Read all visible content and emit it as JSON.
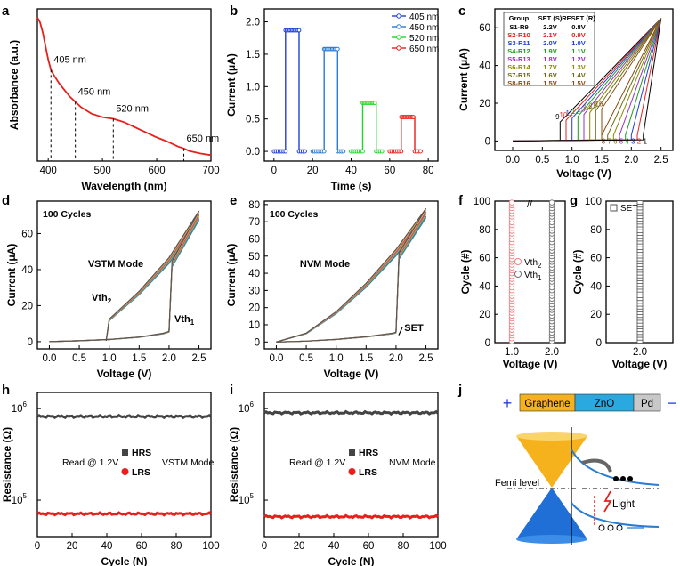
{
  "panels": {
    "a": {
      "letter": "a"
    },
    "b": {
      "letter": "b"
    },
    "c": {
      "letter": "c"
    },
    "d": {
      "letter": "d"
    },
    "e": {
      "letter": "e"
    },
    "f": {
      "letter": "f"
    },
    "g": {
      "letter": "g"
    },
    "h": {
      "letter": "h"
    },
    "i": {
      "letter": "i"
    },
    "j": {
      "letter": "j"
    }
  },
  "chart_data": [
    {
      "id": "a",
      "type": "line",
      "title": "",
      "xlabel": "Wavelength (nm)",
      "ylabel": "Absorbance (a.u.)",
      "xlim": [
        380,
        700
      ],
      "xticks": [
        400,
        500,
        600,
        700
      ],
      "yticks": [],
      "color": "#e8201c",
      "x": [
        380,
        385,
        390,
        395,
        400,
        405,
        410,
        420,
        430,
        440,
        450,
        460,
        470,
        480,
        490,
        500,
        510,
        520,
        530,
        540,
        550,
        560,
        570,
        580,
        590,
        600,
        620,
        640,
        650,
        660,
        680,
        700
      ],
      "y": [
        0.95,
        0.92,
        0.86,
        0.78,
        0.7,
        0.64,
        0.61,
        0.56,
        0.52,
        0.48,
        0.45,
        0.42,
        0.4,
        0.38,
        0.37,
        0.36,
        0.355,
        0.35,
        0.34,
        0.33,
        0.315,
        0.3,
        0.285,
        0.27,
        0.255,
        0.24,
        0.215,
        0.185,
        0.175,
        0.16,
        0.145,
        0.135
      ],
      "annotations": [
        {
          "x": 405,
          "label": "405 nm"
        },
        {
          "x": 450,
          "label": "450 nm"
        },
        {
          "x": 520,
          "label": "520 nm"
        },
        {
          "x": 650,
          "label": "650 nm"
        }
      ]
    },
    {
      "id": "b",
      "type": "line",
      "title": "",
      "xlabel": "Time (s)",
      "ylabel": "Current (μA)",
      "xlim": [
        -5,
        85
      ],
      "ylim": [
        -0.15,
        2.2
      ],
      "xticks": [
        0,
        20,
        40,
        60,
        80
      ],
      "yticks": [
        0.0,
        0.5,
        1.0,
        1.5,
        2.0
      ],
      "yticklabels": [
        "0.0",
        "0.5",
        "1.0",
        "1.5",
        "2.0"
      ],
      "series": [
        {
          "name": "405 nm",
          "color": "#1f3fd6",
          "t_on": 6,
          "t_off": 13,
          "t_end": 16,
          "t_start": 0,
          "high": 1.87
        },
        {
          "name": "450 nm",
          "color": "#2a7bd4",
          "t_on": 26,
          "t_off": 33,
          "t_end": 36,
          "t_start": 20,
          "high": 1.58
        },
        {
          "name": "520 nm",
          "color": "#1fd62a",
          "t_on": 46,
          "t_off": 53,
          "t_end": 56,
          "t_start": 40,
          "high": 0.75
        },
        {
          "name": "650 nm",
          "color": "#e8201c",
          "t_on": 66,
          "t_off": 73,
          "t_end": 76,
          "t_start": 60,
          "high": 0.53
        }
      ]
    },
    {
      "id": "c",
      "type": "line",
      "title": "",
      "xlabel": "Voltage (V)",
      "ylabel": "Current (μA)",
      "xlim": [
        -0.3,
        2.7
      ],
      "ylim": [
        -5,
        70
      ],
      "xticks": [
        0.0,
        0.5,
        1.0,
        1.5,
        2.0,
        2.5
      ],
      "yticks": [
        0,
        20,
        40,
        60
      ],
      "xticklabels": [
        "0.0",
        "0.5",
        "1.0",
        "1.5",
        "2.0",
        "2.5"
      ],
      "table": {
        "header": [
          "Group",
          "SET (S)",
          "RESET (R)"
        ],
        "rows": [
          {
            "g": "S1-R9",
            "s": "2.2V",
            "r": "0.8V",
            "color": "#000000"
          },
          {
            "g": "S2-R10",
            "s": "2.1V",
            "r": "0.9V",
            "color": "#e8201c"
          },
          {
            "g": "S3-R11",
            "s": "2.0V",
            "r": "1.0V",
            "color": "#1f3fd6"
          },
          {
            "g": "S4-R12",
            "s": "1.9V",
            "r": "1.1V",
            "color": "#1a9c1a"
          },
          {
            "g": "S5-R13",
            "s": "1.8V",
            "r": "1.2V",
            "color": "#9b30c0"
          },
          {
            "g": "S6-R14",
            "s": "1.7V",
            "r": "1.3V",
            "color": "#8a8a00"
          },
          {
            "g": "S7-R15",
            "s": "1.6V",
            "r": "1.4V",
            "color": "#6a6a10"
          },
          {
            "g": "S8-R16",
            "s": "1.5V",
            "r": "1.5V",
            "color": "#8b4a0e"
          }
        ]
      },
      "set_labels": [
        "8",
        "7",
        "6",
        "5",
        "4",
        "3",
        "2",
        "1"
      ],
      "set_voltages": [
        1.5,
        1.6,
        1.7,
        1.8,
        1.9,
        2.0,
        2.1,
        2.2
      ],
      "reset_labels": [
        "9",
        "10",
        "11",
        "12",
        "13",
        "14",
        "15",
        "16"
      ],
      "reset_voltages": [
        0.8,
        0.9,
        1.0,
        1.1,
        1.2,
        1.3,
        1.4,
        1.5
      ]
    },
    {
      "id": "d",
      "type": "line",
      "title": "",
      "xlabel": "Voltage (V)",
      "ylabel": "Current (μA)",
      "xlim": [
        -0.2,
        2.7
      ],
      "ylim": [
        -4,
        78
      ],
      "xticks": [
        0.0,
        0.5,
        1.0,
        1.5,
        2.0,
        2.5
      ],
      "yticks": [
        0,
        20,
        40,
        60
      ],
      "xticklabels": [
        "0.0",
        "0.5",
        "1.0",
        "1.5",
        "2.0",
        "2.5"
      ],
      "texts": {
        "cycles": "100 Cycles",
        "mode": "VSTM Mode",
        "vth2": "Vth",
        "vth2_sub": "2",
        "vth1": "Vth",
        "vth1_sub": "1"
      },
      "forward": {
        "x": [
          0,
          0.5,
          1.0,
          1.5,
          1.9,
          2.0,
          2.05,
          2.5
        ],
        "y": [
          0,
          0.5,
          1.2,
          2.5,
          4.5,
          5.5,
          43,
          70
        ]
      },
      "return_branch": {
        "x": [
          2.5,
          2.0,
          1.5,
          1.0,
          0.95
        ],
        "y": [
          70,
          45,
          27,
          12,
          0.5
        ]
      }
    },
    {
      "id": "e",
      "type": "line",
      "title": "",
      "xlabel": "Voltage (V)",
      "ylabel": "Current (μA)",
      "xlim": [
        -0.2,
        2.7
      ],
      "ylim": [
        -4,
        82
      ],
      "xticks": [
        0.0,
        0.5,
        1.0,
        1.5,
        2.0,
        2.5
      ],
      "yticks": [
        0,
        10,
        20,
        30,
        40,
        50,
        60,
        70,
        80
      ],
      "xticklabels": [
        "0.0",
        "0.5",
        "1.0",
        "1.5",
        "2.0",
        "2.5"
      ],
      "texts": {
        "cycles": "100 Cycles",
        "mode": "NVM Mode",
        "set": "SET"
      },
      "forward": {
        "x": [
          0,
          0.5,
          1.0,
          1.5,
          1.95,
          2.0,
          2.05,
          2.5
        ],
        "y": [
          0,
          0.5,
          1.5,
          3.0,
          5.0,
          5.5,
          50,
          75
        ]
      },
      "return_branch": {
        "x": [
          2.5,
          2.0,
          1.5,
          1.0,
          0.5,
          0.0
        ],
        "y": [
          75,
          52,
          33,
          17,
          5,
          0
        ]
      }
    },
    {
      "id": "f",
      "type": "scatter",
      "title": "",
      "xlabel": "Voltage (V)",
      "ylabel": "Cycle (#)",
      "ylim": [
        0,
        100
      ],
      "yticks": [
        0,
        20,
        40,
        60,
        80,
        100
      ],
      "xticklabels": [
        "1.0",
        "2.0"
      ],
      "legend": [
        {
          "label": "Vth",
          "sub": "2",
          "color": "#f08080"
        },
        {
          "label": "Vth",
          "sub": "1",
          "color": "#707070"
        }
      ],
      "series": [
        {
          "name": "Vth2",
          "x": 1.0,
          "color": "#f08080"
        },
        {
          "name": "Vth1",
          "x": 2.0,
          "color": "#707070"
        }
      ]
    },
    {
      "id": "g",
      "type": "scatter",
      "title": "",
      "xlabel": "Voltage (V)",
      "ylabel": "Cycle (#)",
      "ylim": [
        0,
        100
      ],
      "yticks": [
        0,
        20,
        40,
        60,
        80,
        100
      ],
      "xticklabels": [
        "2.0"
      ],
      "legend": [
        {
          "label": "SET",
          "color": "#505050"
        }
      ],
      "series": [
        {
          "name": "SET",
          "x": 2.0,
          "color": "#505050"
        }
      ]
    },
    {
      "id": "h",
      "type": "line",
      "title": "",
      "xlabel": "Cycle (N)",
      "ylabel": "Resistance (Ω)",
      "xlim": [
        0,
        100
      ],
      "yscale": "log",
      "ylim": [
        40000,
        1500000
      ],
      "xticks": [
        0,
        20,
        40,
        60,
        80,
        100
      ],
      "yticklabels": [
        {
          "base": "10",
          "exp": "6",
          "v": 1000000
        },
        {
          "base": "10",
          "exp": "5",
          "v": 100000
        }
      ],
      "texts": {
        "read": "Read @ 1.2V",
        "mode": "VSTM Mode",
        "hrs": "HRS",
        "lrs": "LRS"
      },
      "series": [
        {
          "name": "HRS",
          "value": 820000,
          "color": "#444444"
        },
        {
          "name": "LRS",
          "value": 71000,
          "color": "#e8201c"
        }
      ]
    },
    {
      "id": "i",
      "type": "line",
      "title": "",
      "xlabel": "Cycle (N)",
      "ylabel": "Resistance (Ω)",
      "xlim": [
        0,
        100
      ],
      "yscale": "log",
      "ylim": [
        40000,
        1500000
      ],
      "xticks": [
        0,
        20,
        40,
        60,
        80,
        100
      ],
      "yticklabels": [
        {
          "base": "10",
          "exp": "6",
          "v": 1000000
        },
        {
          "base": "10",
          "exp": "5",
          "v": 100000
        }
      ],
      "texts": {
        "read": "Read @ 1.2V",
        "mode": "NVM Mode",
        "hrs": "HRS",
        "lrs": "LRS"
      },
      "series": [
        {
          "name": "HRS",
          "value": 900000,
          "color": "#444444"
        },
        {
          "name": "LRS",
          "value": 66000,
          "color": "#e8201c"
        }
      ]
    }
  ],
  "diagram_j": {
    "layers": [
      {
        "label": "Graphene",
        "color": "#f6b21c"
      },
      {
        "label": "ZnO",
        "color": "#2aa8e0"
      },
      {
        "label": "Pd",
        "color": "#c8c8c8"
      }
    ],
    "plus": "+",
    "minus": "−",
    "fermi_label": "Femi level",
    "light_label": "Light"
  }
}
